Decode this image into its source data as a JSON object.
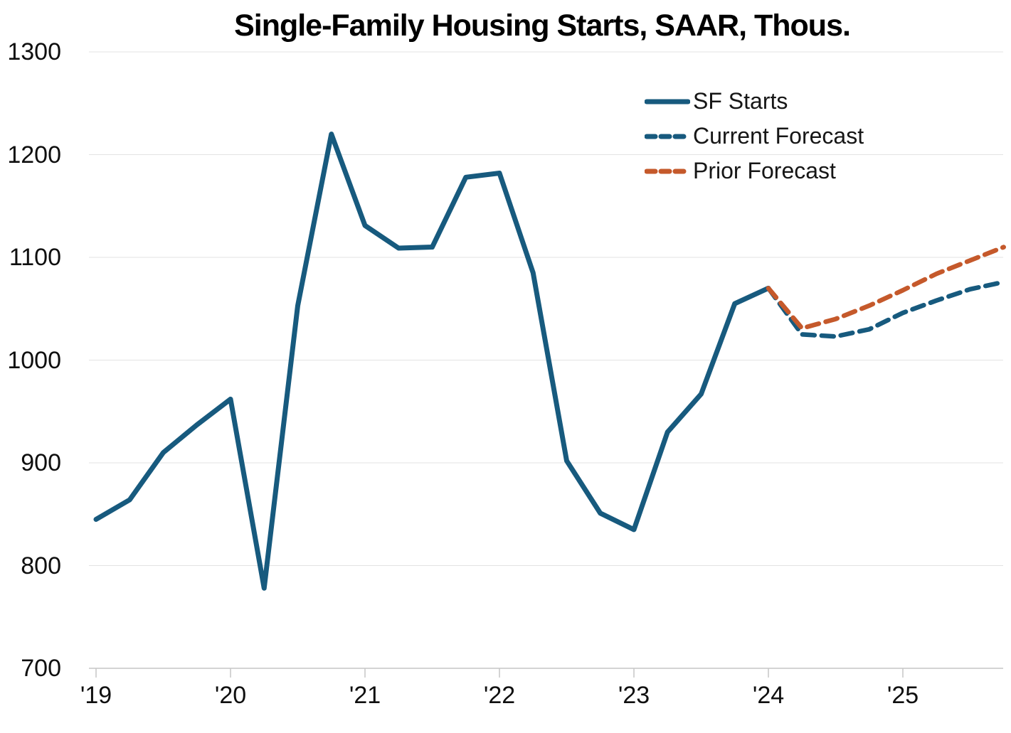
{
  "chart_data": {
    "type": "line",
    "title": "Single-Family Housing Starts, SAAR, Thous.",
    "xlabel": "",
    "ylabel": "",
    "ylim": [
      700,
      1300
    ],
    "y_ticks": [
      1300,
      1200,
      1100,
      1000,
      900,
      800,
      700
    ],
    "x_tick_labels": [
      "'19",
      "'20",
      "'21",
      "'22",
      "'23",
      "'24",
      "'25"
    ],
    "x_unit": "quarter",
    "quarters_per_year": 4,
    "grid": "horizontal",
    "legend_position": "upper-right",
    "series": [
      {
        "name": "SF Starts",
        "style": "solid",
        "color": "#175a7e",
        "start_index": 0,
        "values": [
          845,
          864,
          910,
          937,
          962,
          778,
          1053,
          1220,
          1131,
          1109,
          1110,
          1178,
          1182,
          1085,
          902,
          851,
          835,
          930,
          967,
          1055,
          1070
        ]
      },
      {
        "name": "Current Forecast",
        "style": "dashed",
        "color": "#175a7e",
        "start_index": 20,
        "values": [
          1070,
          1025,
          1023,
          1030,
          1046,
          1058,
          1069,
          1076
        ]
      },
      {
        "name": "Prior Forecast",
        "style": "dashed",
        "color": "#c5592b",
        "start_index": 20,
        "values": [
          1070,
          1031,
          1040,
          1053,
          1068,
          1084,
          1097,
          1110
        ]
      }
    ]
  }
}
